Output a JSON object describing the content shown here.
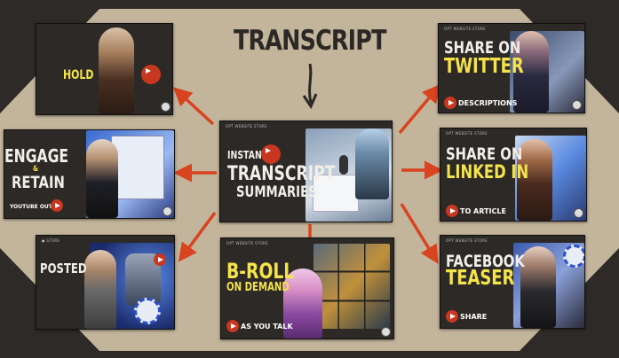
{
  "main": {
    "title": "TRANSCRIPT"
  },
  "colors": {
    "background": "#2e2a27",
    "hexagon": "#c3b59b",
    "arrow": "#d9431f",
    "card_dark": "#2c2926",
    "accent_yellow": "#f4e34a",
    "play_red": "#c8371f"
  },
  "cards": {
    "hold": {
      "headline": "HOLD"
    },
    "engage": {
      "line1": "ENGAGE",
      "amp": "&",
      "line2": "RETAIN",
      "sub": "YOUTUBE OUTRO"
    },
    "posted": {
      "headline": "POSTED"
    },
    "center": {
      "topbar": "OPT   WEBSITE      STORE",
      "instant": "INSTANT!",
      "line1": "TRANSCRIPT",
      "line2": "SUMMARIES"
    },
    "broll": {
      "topbar": "OPT   WEBSITE      STORE",
      "line1": "B-ROLL",
      "line2": "ON DEMAND",
      "sub": "AS YOU TALK"
    },
    "twitter": {
      "topbar": "OPT   WEBSITE      STORE",
      "line1": "SHARE ON",
      "line2": "TWITTER",
      "sub": "DESCRIPTIONS"
    },
    "linkedin": {
      "topbar": "OPT   WEBSITE      STORE",
      "line1": "SHARE ON",
      "line2": "LINKED IN",
      "sub": "TO ARTICLE"
    },
    "facebook": {
      "topbar": "OPT   WEBSITE      STORE",
      "line1": "FACEBOOK",
      "line2": "TEASER",
      "sub": "SHARE"
    }
  }
}
